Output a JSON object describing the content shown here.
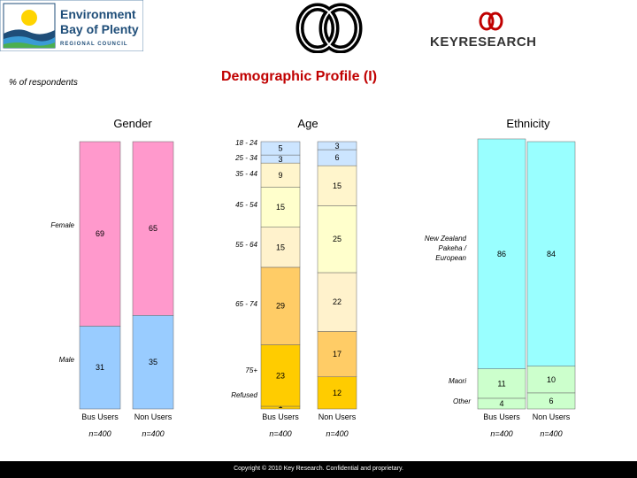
{
  "page": {
    "title": "Demographic Profile (I)",
    "subtitle": "% of respondents",
    "copyright": "Copyright © 2010 Key Research. Confidential and proprietary."
  },
  "logos": {
    "left_line1": "Environment",
    "left_line2": "Bay of Plenty",
    "left_line3": "REGIONAL COUNCIL",
    "right_text": "KEYRESEARCH"
  },
  "colors": {
    "female": "#ff99cc",
    "male": "#99ccff",
    "nz": "#99ffff",
    "maori": "#ccffcc",
    "other": "#ccffcc",
    "age_18_24": "#cce5ff",
    "age_25_34": "#cce5ff",
    "age_35_44": "#fff5cc",
    "age_45_54": "#ffffcc",
    "age_55_64": "#fff2cc",
    "age_65_74": "#ffcc66",
    "age_75_plus": "#ffcc00",
    "refused": "#ffcc00",
    "title": "#c00000"
  },
  "chart_data": [
    {
      "type": "bar",
      "stacked": true,
      "title": "Gender",
      "categories": [
        "Bus Users",
        "Non Users"
      ],
      "sample_sizes": [
        "n=400",
        "n=400"
      ],
      "series": [
        {
          "name": "Male",
          "values": [
            31,
            35
          ]
        },
        {
          "name": "Female",
          "values": [
            69,
            65
          ]
        }
      ],
      "ylim": [
        0,
        100
      ]
    },
    {
      "type": "bar",
      "stacked": true,
      "title": "Age",
      "categories": [
        "Bus Users",
        "Non Users"
      ],
      "sample_sizes": [
        "n=400",
        "n=400"
      ],
      "series": [
        {
          "name": "Refused",
          "values": [
            1,
            0
          ]
        },
        {
          "name": "75+",
          "values": [
            23,
            12
          ]
        },
        {
          "name": "65 - 74",
          "values": [
            29,
            17
          ]
        },
        {
          "name": "55 - 64",
          "values": [
            15,
            22
          ]
        },
        {
          "name": "45 - 54",
          "values": [
            15,
            25
          ]
        },
        {
          "name": "35 - 44",
          "values": [
            9,
            15
          ]
        },
        {
          "name": "25 - 34",
          "values": [
            3,
            6
          ]
        },
        {
          "name": "18 - 24",
          "values": [
            5,
            3
          ]
        }
      ],
      "ylim": [
        0,
        100
      ]
    },
    {
      "type": "bar",
      "stacked": true,
      "title": "Ethnicity",
      "categories": [
        "Bus Users",
        "Non Users"
      ],
      "sample_sizes": [
        "n=400",
        "n=400"
      ],
      "series": [
        {
          "name": "Other",
          "values": [
            4,
            6
          ]
        },
        {
          "name": "Maori",
          "values": [
            11,
            10
          ]
        },
        {
          "name": "New Zealand Pakeha / European",
          "values": [
            86,
            84
          ]
        }
      ],
      "ylim": [
        0,
        100
      ]
    }
  ]
}
